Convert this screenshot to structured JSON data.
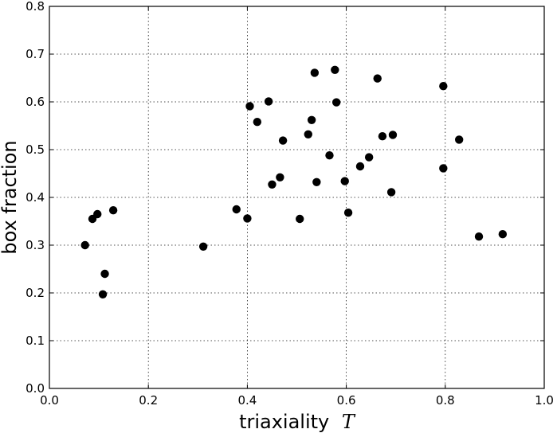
{
  "chart_data": {
    "type": "scatter",
    "xlabel": "triaxiality",
    "xlabel_symbol": "T",
    "ylabel": "box fraction",
    "xlim": [
      0.0,
      1.0
    ],
    "ylim": [
      0.0,
      0.8
    ],
    "xticks": [
      "0.0",
      "0.2",
      "0.4",
      "0.6",
      "0.8",
      "1.0"
    ],
    "yticks": [
      "0.0",
      "0.1",
      "0.2",
      "0.3",
      "0.4",
      "0.5",
      "0.6",
      "0.7",
      "0.8"
    ],
    "grid": true,
    "marker_color": "#000000",
    "points": [
      {
        "x": 0.072,
        "y": 0.3
      },
      {
        "x": 0.087,
        "y": 0.355
      },
      {
        "x": 0.097,
        "y": 0.365
      },
      {
        "x": 0.108,
        "y": 0.197
      },
      {
        "x": 0.112,
        "y": 0.24
      },
      {
        "x": 0.129,
        "y": 0.373
      },
      {
        "x": 0.311,
        "y": 0.297
      },
      {
        "x": 0.378,
        "y": 0.375
      },
      {
        "x": 0.4,
        "y": 0.356
      },
      {
        "x": 0.405,
        "y": 0.591
      },
      {
        "x": 0.42,
        "y": 0.558
      },
      {
        "x": 0.443,
        "y": 0.601
      },
      {
        "x": 0.45,
        "y": 0.427
      },
      {
        "x": 0.466,
        "y": 0.442
      },
      {
        "x": 0.472,
        "y": 0.519
      },
      {
        "x": 0.506,
        "y": 0.355
      },
      {
        "x": 0.523,
        "y": 0.532
      },
      {
        "x": 0.53,
        "y": 0.562
      },
      {
        "x": 0.536,
        "y": 0.661
      },
      {
        "x": 0.54,
        "y": 0.432
      },
      {
        "x": 0.566,
        "y": 0.488
      },
      {
        "x": 0.577,
        "y": 0.667
      },
      {
        "x": 0.58,
        "y": 0.599
      },
      {
        "x": 0.597,
        "y": 0.434
      },
      {
        "x": 0.604,
        "y": 0.368
      },
      {
        "x": 0.628,
        "y": 0.465
      },
      {
        "x": 0.646,
        "y": 0.484
      },
      {
        "x": 0.663,
        "y": 0.649
      },
      {
        "x": 0.673,
        "y": 0.528
      },
      {
        "x": 0.691,
        "y": 0.411
      },
      {
        "x": 0.694,
        "y": 0.531
      },
      {
        "x": 0.796,
        "y": 0.633
      },
      {
        "x": 0.796,
        "y": 0.461
      },
      {
        "x": 0.828,
        "y": 0.521
      },
      {
        "x": 0.868,
        "y": 0.318
      },
      {
        "x": 0.916,
        "y": 0.323
      }
    ]
  }
}
